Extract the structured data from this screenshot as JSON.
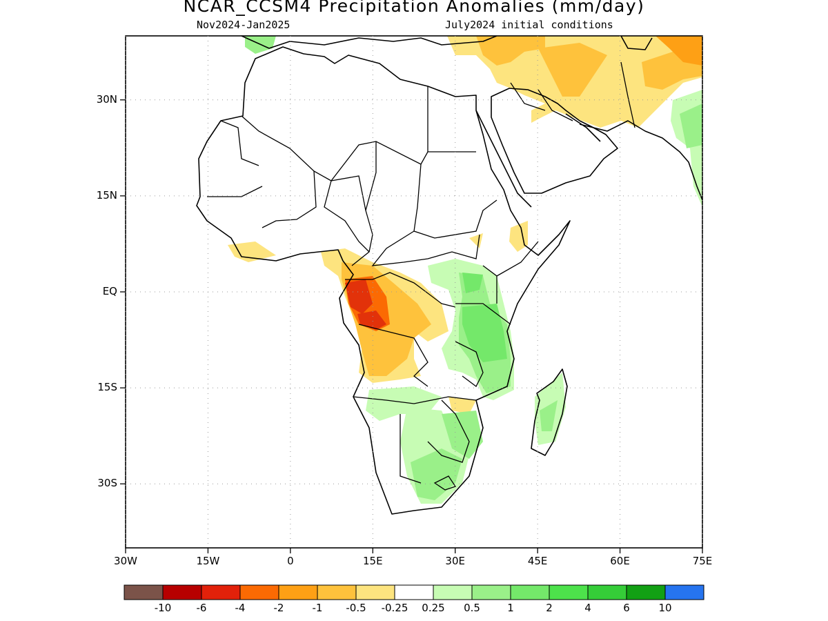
{
  "title": "NCAR_CCSM4 Precipitation Anomalies (mm/day)",
  "subtitle_left": "Nov2024-Jan2025",
  "subtitle_right": "July2024 initial conditions",
  "map": {
    "lon_range": [
      -30,
      75
    ],
    "lat_range": [
      -40,
      40
    ],
    "lat_ticks": [
      {
        "value": 30,
        "label": "30N"
      },
      {
        "value": 15,
        "label": "15N"
      },
      {
        "value": 0,
        "label": "EQ"
      },
      {
        "value": -15,
        "label": "15S"
      },
      {
        "value": -30,
        "label": "30S"
      }
    ],
    "lon_ticks": [
      {
        "value": -30,
        "label": "30W"
      },
      {
        "value": -15,
        "label": "15W"
      },
      {
        "value": 0,
        "label": "0"
      },
      {
        "value": 15,
        "label": "15E"
      },
      {
        "value": 30,
        "label": "30E"
      },
      {
        "value": 45,
        "label": "45E"
      },
      {
        "value": 60,
        "label": "60E"
      },
      {
        "value": 75,
        "label": "75E"
      }
    ],
    "grid": true,
    "dry_color_lo": "#fde47f",
    "dry_color_mid": "#fec23c",
    "dry_color_hi": "#fea015",
    "dry_color_xhi": "#fb6a03",
    "dry_color_max": "#e2320a",
    "wet_color_lo": "#c7fcb4",
    "wet_color_mid": "#9af089",
    "wet_color_hi": "#74e86a"
  },
  "colorbar": {
    "colors": [
      "#7b5349",
      "#b70000",
      "#e2210a",
      "#fb6a03",
      "#fea015",
      "#fec23c",
      "#fde47f",
      "#ffffff",
      "#c7fcb4",
      "#9af089",
      "#74e86a",
      "#4de24b",
      "#35cd38",
      "#12a014",
      "#2674ef"
    ],
    "labels": [
      "-10",
      "-6",
      "-4",
      "-2",
      "-1",
      "-0.5",
      "-0.25",
      "0.25",
      "0.5",
      "1",
      "2",
      "4",
      "6",
      "10"
    ]
  }
}
